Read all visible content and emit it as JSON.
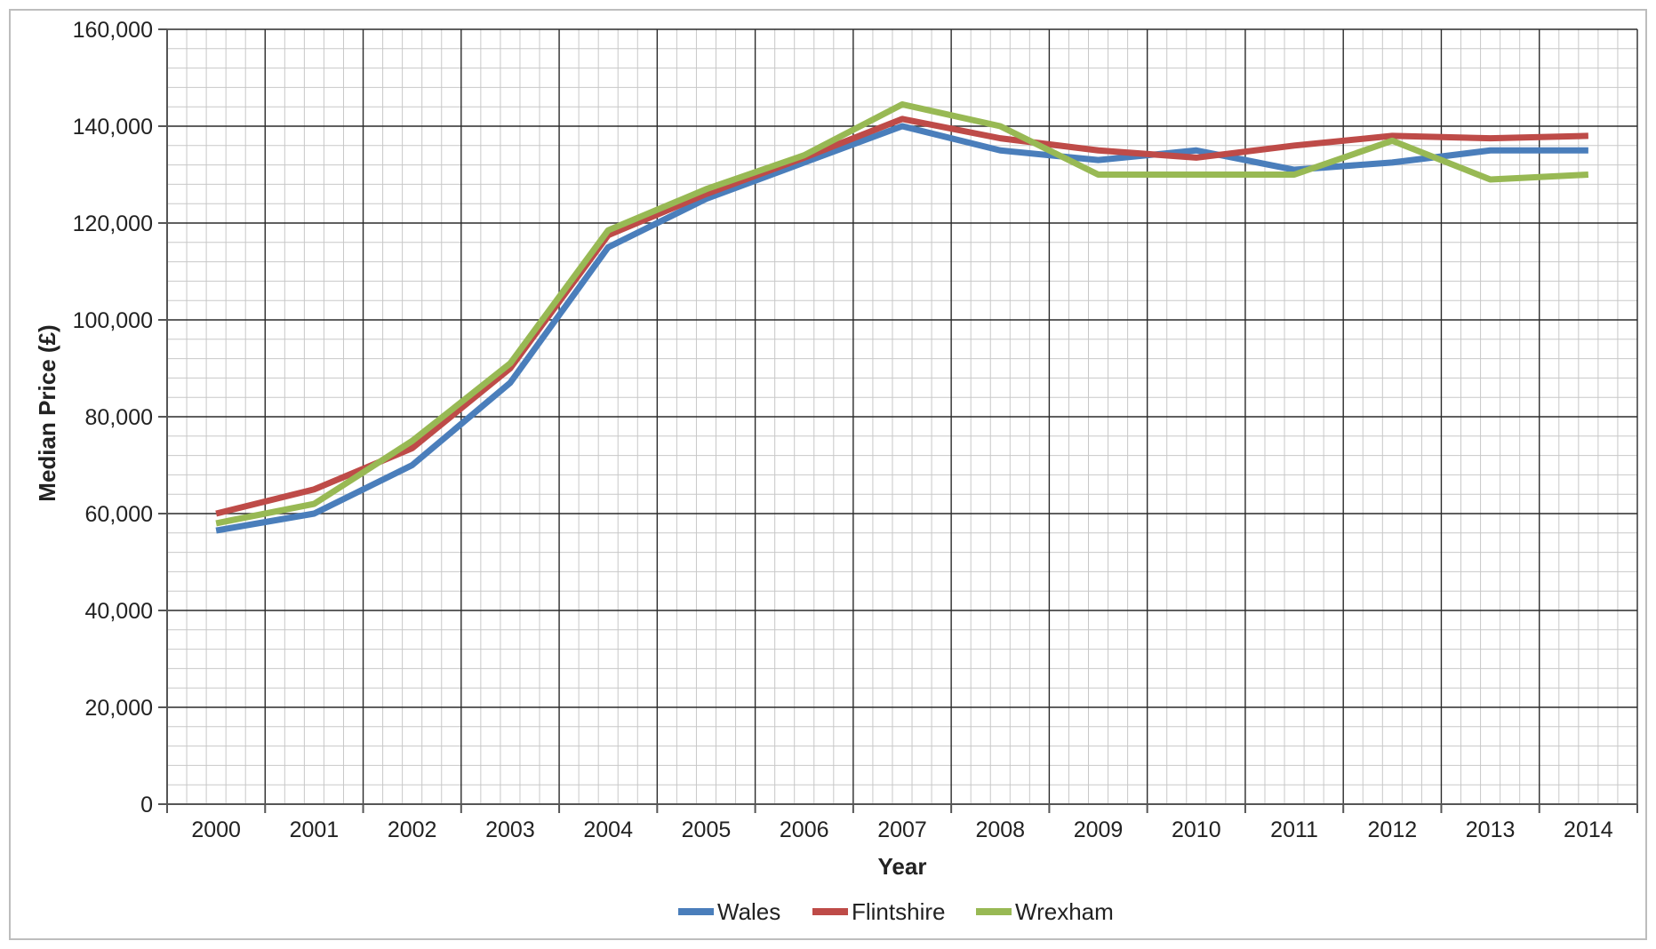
{
  "chart_data": {
    "type": "line",
    "xlabel": "Year",
    "ylabel": "Median Price (£)",
    "x": [
      "2000",
      "2001",
      "2002",
      "2003",
      "2004",
      "2005",
      "2006",
      "2007",
      "2008",
      "2009",
      "2010",
      "2011",
      "2012",
      "2013",
      "2014"
    ],
    "ylim": [
      0,
      160000
    ],
    "y_ticks": [
      "0",
      "20,000",
      "40,000",
      "60,000",
      "80,000",
      "100,000",
      "120,000",
      "140,000",
      "160,000"
    ],
    "grid": true,
    "legend_position": "bottom",
    "series": [
      {
        "name": "Wales",
        "color": "#4a7ebb",
        "values": [
          56500,
          60000,
          70000,
          87000,
          115000,
          125000,
          132500,
          140000,
          135000,
          133000,
          135000,
          131000,
          132500,
          135000,
          135000
        ]
      },
      {
        "name": "Flintshire",
        "color": "#be4b48",
        "values": [
          60000,
          65000,
          73500,
          90000,
          117500,
          126000,
          133500,
          141500,
          137500,
          135000,
          133500,
          136000,
          138000,
          137500,
          138000
        ]
      },
      {
        "name": "Wrexham",
        "color": "#98b954",
        "values": [
          58000,
          62000,
          75000,
          91000,
          118500,
          127000,
          134000,
          144500,
          140000,
          130000,
          130000,
          130000,
          137000,
          129000,
          130000
        ]
      }
    ]
  }
}
